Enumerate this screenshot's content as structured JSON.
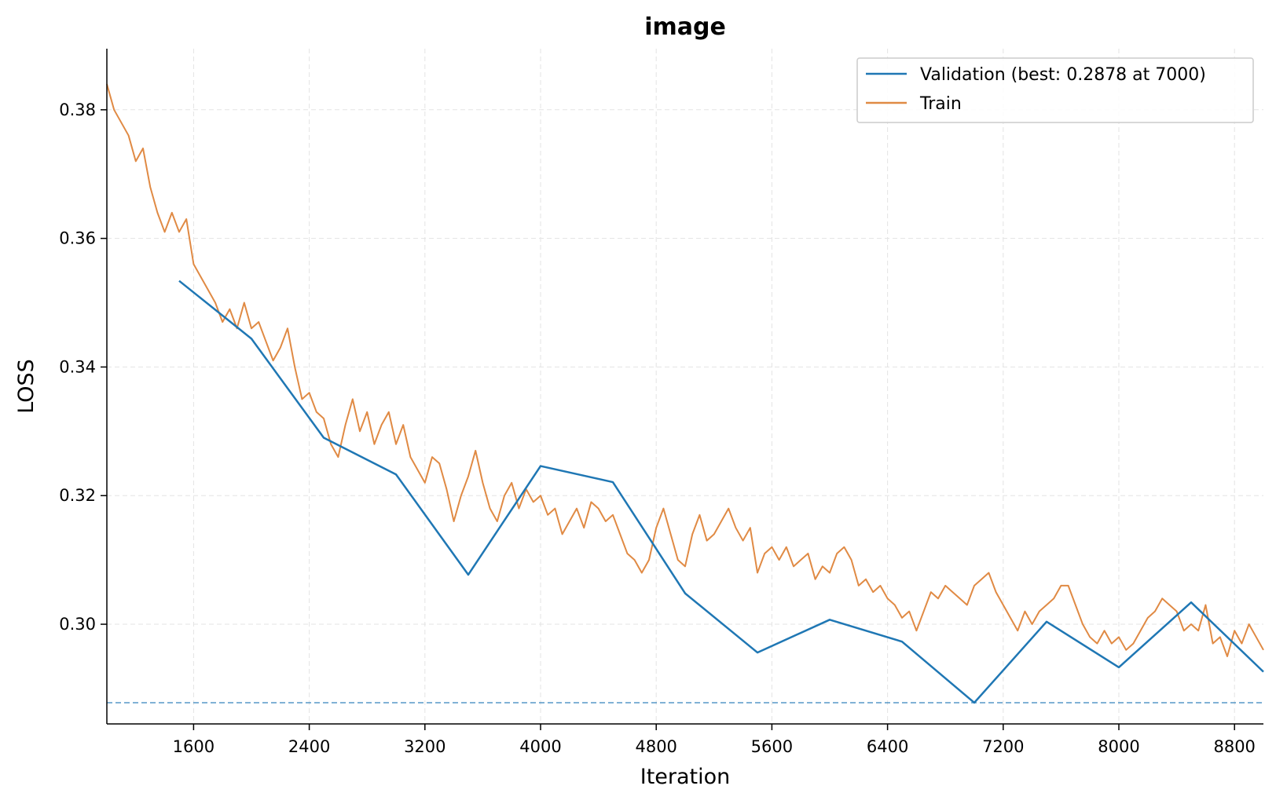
{
  "chart_data": {
    "type": "line",
    "title": "image",
    "xlabel": "Iteration",
    "ylabel": "LOSS",
    "xlim": [
      1000,
      9000
    ],
    "ylim": [
      0.2845,
      0.3895
    ],
    "xticks": [
      1600,
      2400,
      3200,
      4000,
      4800,
      5600,
      6400,
      7200,
      8000,
      8800
    ],
    "yticks": [
      0.3,
      0.32,
      0.34,
      0.36,
      0.38
    ],
    "xtick_labels": [
      "1600",
      "2400",
      "3200",
      "4000",
      "4800",
      "5600",
      "6400",
      "7200",
      "8000",
      "8800"
    ],
    "ytick_labels": [
      "0.30",
      "0.32",
      "0.34",
      "0.36",
      "0.38"
    ],
    "grid": true,
    "legend_position": "top-right",
    "series": [
      {
        "name": "Validation (best: 0.2878 at 7000)",
        "color": "#1f77b4",
        "x": [
          1500,
          2000,
          2500,
          3000,
          3500,
          4000,
          4500,
          5000,
          5500,
          6000,
          6500,
          7000,
          7500,
          8000,
          8500,
          9000
        ],
        "y": [
          0.3534,
          0.3444,
          0.329,
          0.3233,
          0.3077,
          0.3246,
          0.3221,
          0.3048,
          0.2956,
          0.3007,
          0.2973,
          0.2878,
          0.3004,
          0.2933,
          0.3034,
          0.2926
        ]
      },
      {
        "name": "Train",
        "color": "#e08a44",
        "x": [
          1000,
          1050,
          1100,
          1150,
          1200,
          1250,
          1300,
          1350,
          1400,
          1450,
          1500,
          1550,
          1600,
          1650,
          1700,
          1750,
          1800,
          1850,
          1900,
          1950,
          2000,
          2050,
          2100,
          2150,
          2200,
          2250,
          2300,
          2350,
          2400,
          2450,
          2500,
          2550,
          2600,
          2650,
          2700,
          2750,
          2800,
          2850,
          2900,
          2950,
          3000,
          3050,
          3100,
          3150,
          3200,
          3250,
          3300,
          3350,
          3400,
          3450,
          3500,
          3550,
          3600,
          3650,
          3700,
          3750,
          3800,
          3850,
          3900,
          3950,
          4000,
          4050,
          4100,
          4150,
          4200,
          4250,
          4300,
          4350,
          4400,
          4450,
          4500,
          4550,
          4600,
          4650,
          4700,
          4750,
          4800,
          4850,
          4900,
          4950,
          5000,
          5050,
          5100,
          5150,
          5200,
          5250,
          5300,
          5350,
          5400,
          5450,
          5500,
          5550,
          5600,
          5650,
          5700,
          5750,
          5800,
          5850,
          5900,
          5950,
          6000,
          6050,
          6100,
          6150,
          6200,
          6250,
          6300,
          6350,
          6400,
          6450,
          6500,
          6550,
          6600,
          6650,
          6700,
          6750,
          6800,
          6850,
          6900,
          6950,
          7000,
          7050,
          7100,
          7150,
          7200,
          7250,
          7300,
          7350,
          7400,
          7450,
          7500,
          7550,
          7600,
          7650,
          7700,
          7750,
          7800,
          7850,
          7900,
          7950,
          8000,
          8050,
          8100,
          8150,
          8200,
          8250,
          8300,
          8350,
          8400,
          8450,
          8500,
          8550,
          8600,
          8650,
          8700,
          8750,
          8800,
          8850,
          8900,
          8950,
          9000
        ],
        "y": [
          0.384,
          0.38,
          0.378,
          0.376,
          0.372,
          0.374,
          0.368,
          0.364,
          0.361,
          0.364,
          0.361,
          0.363,
          0.356,
          0.354,
          0.352,
          0.35,
          0.347,
          0.349,
          0.346,
          0.35,
          0.346,
          0.347,
          0.344,
          0.341,
          0.343,
          0.346,
          0.34,
          0.335,
          0.336,
          0.333,
          0.332,
          0.328,
          0.326,
          0.331,
          0.335,
          0.33,
          0.333,
          0.328,
          0.331,
          0.333,
          0.328,
          0.331,
          0.326,
          0.324,
          0.322,
          0.326,
          0.325,
          0.321,
          0.316,
          0.32,
          0.323,
          0.327,
          0.322,
          0.318,
          0.316,
          0.32,
          0.322,
          0.318,
          0.321,
          0.319,
          0.32,
          0.317,
          0.318,
          0.314,
          0.316,
          0.318,
          0.315,
          0.319,
          0.318,
          0.316,
          0.317,
          0.314,
          0.311,
          0.31,
          0.308,
          0.31,
          0.315,
          0.318,
          0.314,
          0.31,
          0.309,
          0.314,
          0.317,
          0.313,
          0.314,
          0.316,
          0.318,
          0.315,
          0.313,
          0.315,
          0.308,
          0.311,
          0.312,
          0.31,
          0.312,
          0.309,
          0.31,
          0.311,
          0.307,
          0.309,
          0.308,
          0.311,
          0.312,
          0.31,
          0.306,
          0.307,
          0.305,
          0.306,
          0.304,
          0.303,
          0.301,
          0.302,
          0.299,
          0.302,
          0.305,
          0.304,
          0.306,
          0.305,
          0.304,
          0.303,
          0.306,
          0.307,
          0.308,
          0.305,
          0.303,
          0.301,
          0.299,
          0.302,
          0.3,
          0.302,
          0.303,
          0.304,
          0.306,
          0.306,
          0.303,
          0.3,
          0.298,
          0.297,
          0.299,
          0.297,
          0.298,
          0.296,
          0.297,
          0.299,
          0.301,
          0.302,
          0.304,
          0.303,
          0.302,
          0.299,
          0.3,
          0.299,
          0.303,
          0.297,
          0.298,
          0.295,
          0.299,
          0.297,
          0.3,
          0.298,
          0.296
        ]
      }
    ],
    "reference_line": {
      "y": 0.2878,
      "color": "#1f77b4",
      "style": "dashed"
    }
  }
}
